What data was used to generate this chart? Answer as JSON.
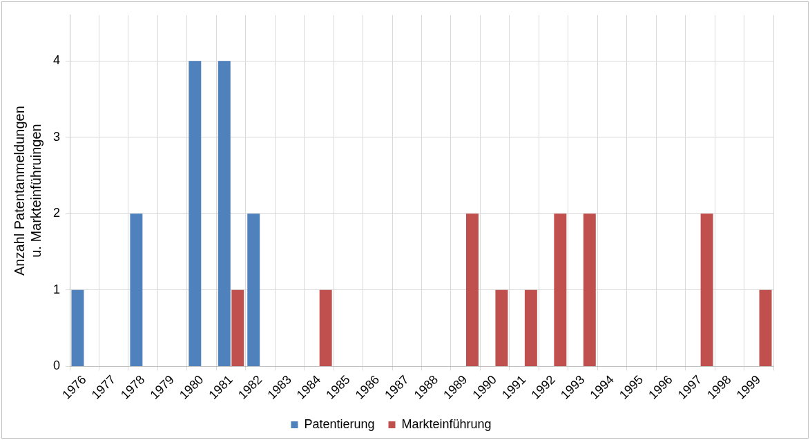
{
  "chart_data": {
    "type": "bar",
    "ylabel": "Anzahl Patentanmeldungen\nu. Markteinführuingen",
    "categories": [
      "1976",
      "1977",
      "1978",
      "1979",
      "1980",
      "1981",
      "1982",
      "1983",
      "1984",
      "1985",
      "1986",
      "1987",
      "1988",
      "1989",
      "1990",
      "1991",
      "1992",
      "1993",
      "1994",
      "1995",
      "1996",
      "1997",
      "1998",
      "1999"
    ],
    "series": [
      {
        "name": "Patentierung",
        "color": "#4f81bd",
        "values": [
          1,
          0,
          2,
          0,
          4,
          4,
          2,
          0,
          0,
          0,
          0,
          0,
          0,
          0,
          0,
          0,
          0,
          0,
          0,
          0,
          0,
          0,
          0,
          0
        ]
      },
      {
        "name": "Markteinführung",
        "color": "#c0504d",
        "values": [
          0,
          0,
          0,
          0,
          0,
          1,
          0,
          0,
          1,
          0,
          0,
          0,
          0,
          2,
          1,
          1,
          2,
          2,
          0,
          0,
          0,
          2,
          0,
          1
        ]
      }
    ],
    "ylim": [
      0,
      4.6
    ],
    "yticks": [
      0,
      1,
      2,
      3,
      4
    ],
    "grid": true,
    "legend": "bottom"
  }
}
